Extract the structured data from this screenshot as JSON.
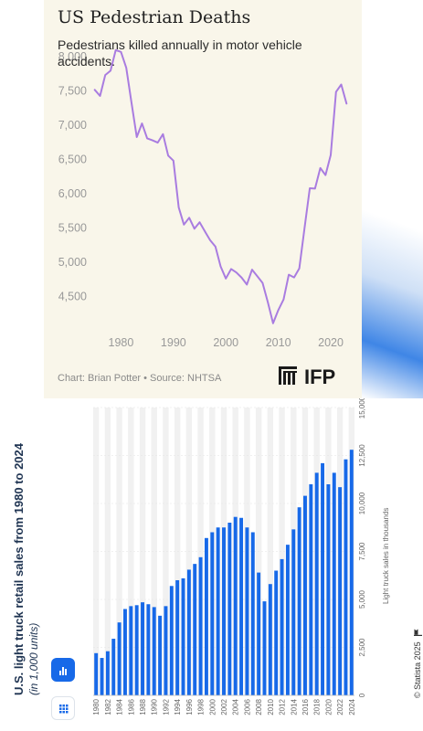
{
  "panel1": {
    "title": "US Pedestrian Deaths",
    "subtitle": "Pedestrians killed annually in motor vehicle accidents.",
    "source": "Chart: Brian Potter • Source: NHTSA",
    "logo_text": "IFP",
    "background": "#f9f6ea",
    "line_color": "#a97ce0",
    "logo_icon": "ifp-logo-icon"
  },
  "panel2": {
    "title": "U.S. light truck retail sales from 1980 to 2024",
    "subtitle": "(in 1,000 units)",
    "credit": "© Statista 2025",
    "bar_color": "#1769e8",
    "band_color": "#f1f1f1",
    "chart_view_icon": "bar-chart-icon",
    "table_view_icon": "table-grid-icon",
    "flag_icon": "flag-icon"
  },
  "chart_data": [
    {
      "type": "line",
      "title": "US Pedestrian Deaths",
      "subtitle": "Pedestrians killed annually in motor vehicle accidents.",
      "xlabel": "",
      "ylabel": "",
      "xlim": [
        1974,
        2024
      ],
      "ylim": [
        4000,
        8000
      ],
      "yticks": [
        4500,
        5000,
        5500,
        6000,
        6500,
        7000,
        7500,
        8000
      ],
      "ytick_labels": [
        "4,500",
        "5,000",
        "5,500",
        "6,000",
        "6,500",
        "7,000",
        "7,500",
        "8,000"
      ],
      "xticks": [
        1980,
        1990,
        2000,
        2010,
        2020
      ],
      "xtick_labels": [
        "1980",
        "1990",
        "2000",
        "2010",
        "2020"
      ],
      "grid": false,
      "series": [
        {
          "x": [
            1975,
            1976,
            1977,
            1978,
            1979,
            1980,
            1981,
            1982,
            1983,
            1984,
            1985,
            1986,
            1987,
            1988,
            1989,
            1990,
            1991,
            1992,
            1993,
            1994,
            1995,
            1996,
            1997,
            1998,
            1999,
            2000,
            2001,
            2002,
            2003,
            2004,
            2005,
            2006,
            2007,
            2008,
            2009,
            2010,
            2011,
            2012,
            2013,
            2014,
            2015,
            2016,
            2017,
            2018,
            2019,
            2020,
            2021,
            2022,
            2023
          ],
          "values": [
            7516,
            7427,
            7732,
            7795,
            8096,
            8070,
            7837,
            7331,
            6826,
            7025,
            6808,
            6779,
            6745,
            6870,
            6556,
            6482,
            5801,
            5549,
            5649,
            5489,
            5584,
            5449,
            5321,
            5228,
            4939,
            4763,
            4901,
            4851,
            4774,
            4675,
            4892,
            4795,
            4699,
            4414,
            4109,
            4302,
            4457,
            4818,
            4779,
            4910,
            5494,
            6080,
            6075,
            6374,
            6272,
            6565,
            7485,
            7593,
            7314
          ]
        }
      ]
    },
    {
      "type": "bar",
      "title": "U.S. light truck retail sales from 1980 to 2024",
      "subtitle": "(in 1,000 units)",
      "xlabel": "",
      "ylabel": "Light truck sales in thousands",
      "ylim": [
        0,
        15000
      ],
      "yticks": [
        0,
        2500,
        5000,
        7500,
        10000,
        12500,
        15000
      ],
      "ytick_labels": [
        "0",
        "2,500",
        "5,000",
        "7,500",
        "10,000",
        "12,500",
        "15,000"
      ],
      "legend": "none",
      "categories": [
        1980,
        1981,
        1982,
        1983,
        1984,
        1985,
        1986,
        1987,
        1988,
        1989,
        1990,
        1991,
        1992,
        1993,
        1994,
        1995,
        1996,
        1997,
        1998,
        1999,
        2000,
        2001,
        2002,
        2003,
        2004,
        2005,
        2006,
        2007,
        2008,
        2009,
        2010,
        2011,
        2012,
        2013,
        2014,
        2015,
        2016,
        2017,
        2018,
        2019,
        2020,
        2021,
        2022,
        2023,
        2024
      ],
      "xtick_labels": [
        "1980",
        "1982",
        "1984",
        "1986",
        "1988",
        "1990",
        "1992",
        "1994",
        "1996",
        "1998",
        "2000",
        "2002",
        "2004",
        "2006",
        "2008",
        "2010",
        "2012",
        "2014",
        "2016",
        "2018",
        "2020",
        "2022",
        "2024"
      ],
      "values": [
        2200,
        1950,
        2300,
        2950,
        3800,
        4500,
        4650,
        4700,
        4850,
        4750,
        4600,
        4150,
        4650,
        5700,
        6000,
        6100,
        6550,
        6850,
        7200,
        8200,
        8500,
        8750,
        8750,
        9000,
        9300,
        9250,
        8750,
        8500,
        6400,
        4900,
        5800,
        6500,
        7100,
        7850,
        8650,
        9800,
        10400,
        11000,
        11600,
        12100,
        11000,
        11600,
        10850,
        12300,
        12800
      ]
    }
  ]
}
